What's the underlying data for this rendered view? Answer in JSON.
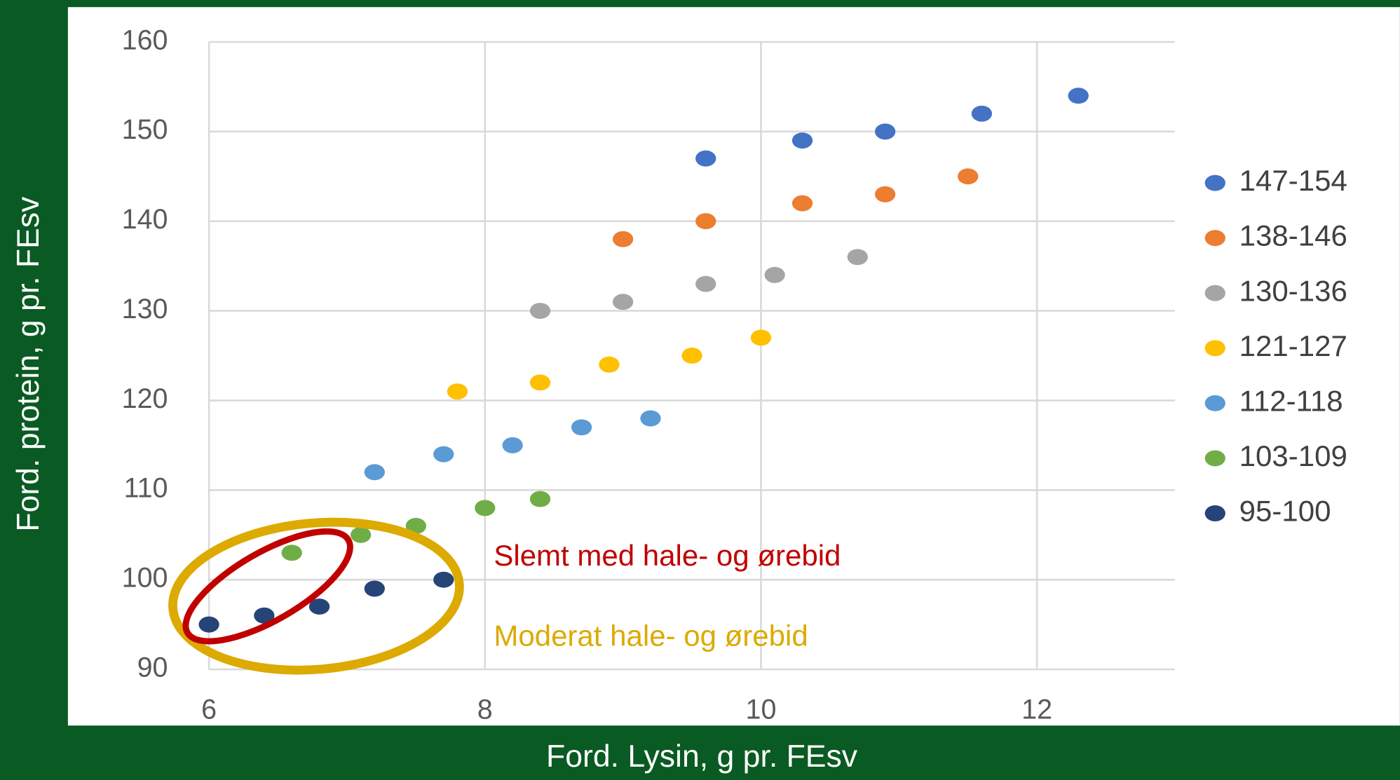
{
  "chart_data": {
    "type": "scatter",
    "xlabel": "Ford. Lysin, g pr. FEsv",
    "ylabel": "Ford. protein, g pr. FEsv",
    "xlim": [
      6,
      13
    ],
    "xticks": [
      6,
      8,
      10,
      12
    ],
    "ylim": [
      90,
      160
    ],
    "yticks": [
      90,
      100,
      110,
      120,
      130,
      140,
      150,
      160
    ],
    "grid": true,
    "legend": "right",
    "series": [
      {
        "name": "147-154",
        "color": "#4472c4",
        "x": [
          9.6,
          10.3,
          10.9,
          11.6,
          12.3
        ],
        "values": [
          147,
          149,
          150,
          152,
          154
        ]
      },
      {
        "name": "138-146",
        "color": "#ed7d31",
        "x": [
          9.0,
          9.6,
          10.3,
          10.9,
          11.5
        ],
        "values": [
          138,
          140,
          142,
          143,
          145
        ]
      },
      {
        "name": "130-136",
        "color": "#a5a5a5",
        "x": [
          8.4,
          9.0,
          9.6,
          10.1,
          10.7
        ],
        "values": [
          130,
          131,
          133,
          134,
          136
        ]
      },
      {
        "name": "121-127",
        "color": "#ffc000",
        "x": [
          7.8,
          8.4,
          8.9,
          9.5,
          10.0
        ],
        "values": [
          121,
          122,
          124,
          125,
          127
        ]
      },
      {
        "name": "112-118",
        "color": "#5b9bd5",
        "x": [
          7.2,
          7.7,
          8.2,
          8.7,
          9.2
        ],
        "values": [
          112,
          114,
          115,
          117,
          118
        ]
      },
      {
        "name": "103-109",
        "color": "#70ad47",
        "x": [
          6.6,
          7.1,
          7.5,
          8.0,
          8.4
        ],
        "values": [
          103,
          105,
          106,
          108,
          109
        ]
      },
      {
        "name": "95-100",
        "color": "#264478",
        "x": [
          6.0,
          6.4,
          6.8,
          7.2,
          7.7
        ],
        "values": [
          95,
          96,
          97,
          99,
          100
        ]
      }
    ],
    "annotations": [
      {
        "text": "Slemt med hale- og ørebid",
        "color": "#c00000"
      },
      {
        "text": "Moderat hale- og ørebid",
        "color": "#dcaa00"
      }
    ]
  }
}
